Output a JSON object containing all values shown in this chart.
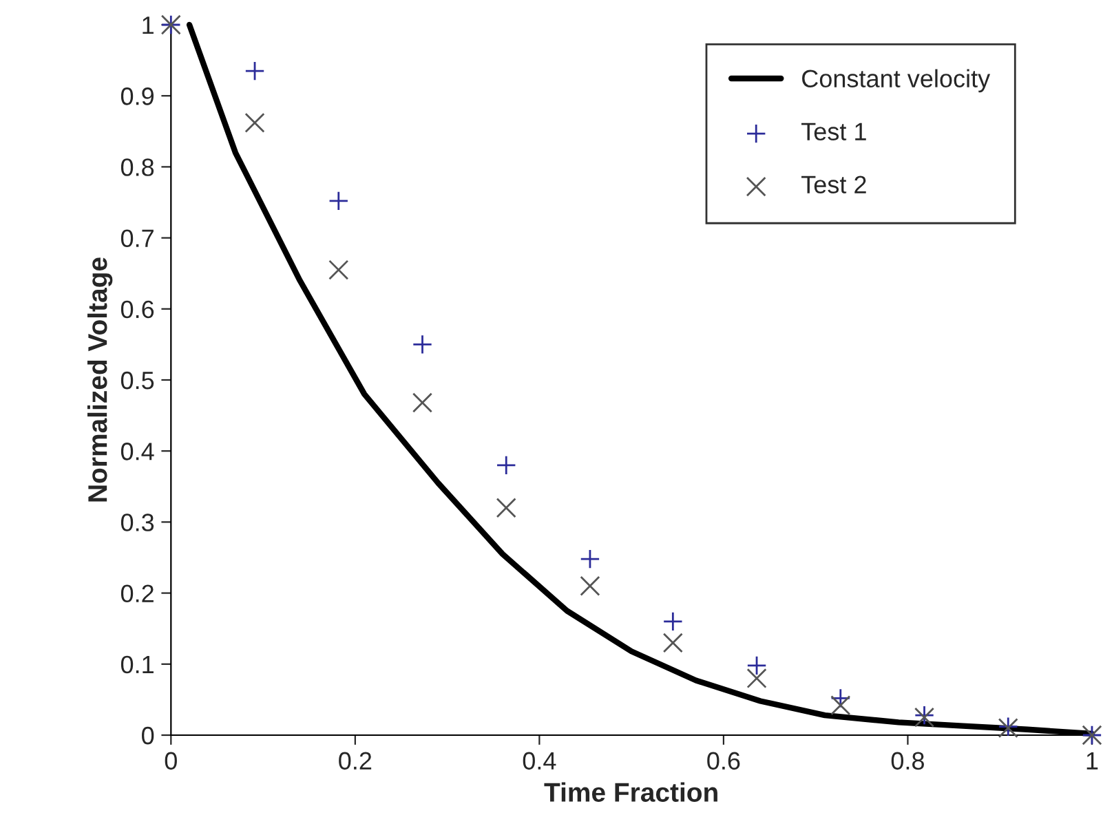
{
  "chart_data": {
    "type": "line",
    "xlabel": "Time Fraction",
    "ylabel": "Normalized Voltage",
    "series": [
      {
        "name": "Constant velocity",
        "color": "#000000",
        "marker": "none",
        "line_style": "solid",
        "x": [
          0.02,
          0.07,
          0.14,
          0.21,
          0.29,
          0.36,
          0.43,
          0.5,
          0.57,
          0.64,
          0.71,
          0.79,
          0.86,
          0.93,
          1
        ],
        "values": [
          1,
          0.82,
          0.64,
          0.48,
          0.355,
          0.255,
          0.175,
          0.118,
          0.077,
          0.048,
          0.028,
          0.018,
          0.013,
          0.008,
          0.002
        ]
      },
      {
        "name": "Test 1",
        "type": "scatter",
        "color": "#2b2b99",
        "marker": "plus",
        "x": [
          0,
          0.091,
          0.182,
          0.273,
          0.364,
          0.455,
          0.545,
          0.636,
          0.727,
          0.818,
          0.909,
          1
        ],
        "values": [
          1,
          0.935,
          0.752,
          0.55,
          0.38,
          0.248,
          0.16,
          0.098,
          0.052,
          0.028,
          0.012,
          0
        ]
      },
      {
        "name": "Test 2",
        "type": "scatter",
        "color": "#555555",
        "marker": "cross",
        "x": [
          0,
          0.091,
          0.182,
          0.273,
          0.364,
          0.455,
          0.545,
          0.636,
          0.727,
          0.818,
          0.909,
          1
        ],
        "values": [
          1,
          0.862,
          0.655,
          0.468,
          0.32,
          0.21,
          0.13,
          0.08,
          0.042,
          0.025,
          0.01,
          0
        ]
      }
    ],
    "xlim": [
      0,
      1
    ],
    "xticks": [
      0,
      0.2,
      0.4,
      0.6,
      0.8,
      1
    ],
    "ylim": [
      0,
      1
    ],
    "yticks": [
      0,
      0.1,
      0.2,
      0.3,
      0.4,
      0.5,
      0.6,
      0.7,
      0.8,
      0.9,
      1
    ],
    "grid": false,
    "legend": "top right"
  }
}
